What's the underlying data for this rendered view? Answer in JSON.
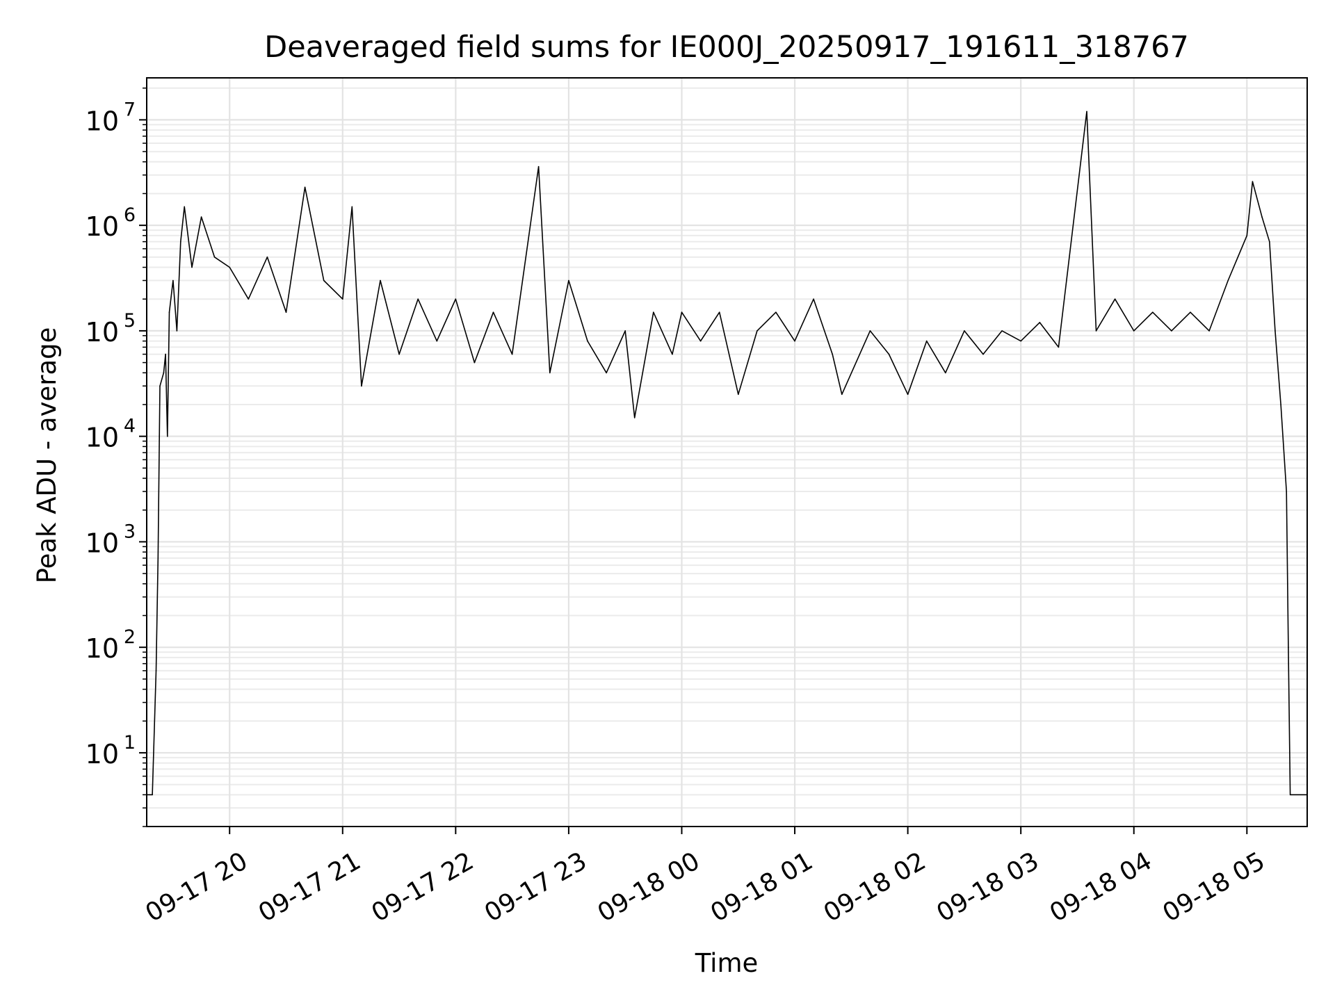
{
  "chart_data": {
    "type": "line",
    "title": "Deaveraged field sums for IE000J_20250917_191611_318767",
    "xlabel": "Time",
    "ylabel": "Peak ADU - average",
    "yscale": "log",
    "ylim": [
      2,
      25000000
    ],
    "xlim": [
      "2025-09-17 19:16",
      "2025-09-18 05:32"
    ],
    "grid": "both major and minor, light gray",
    "legend": "none",
    "line_color": "#000000",
    "x_ticks": [
      {
        "value": "2025-09-17 20:00",
        "label": "09-17 20"
      },
      {
        "value": "2025-09-17 21:00",
        "label": "09-17 21"
      },
      {
        "value": "2025-09-17 22:00",
        "label": "09-17 22"
      },
      {
        "value": "2025-09-17 23:00",
        "label": "09-17 23"
      },
      {
        "value": "2025-09-18 00:00",
        "label": "09-18 00"
      },
      {
        "value": "2025-09-18 01:00",
        "label": "09-18 01"
      },
      {
        "value": "2025-09-18 02:00",
        "label": "09-18 02"
      },
      {
        "value": "2025-09-18 03:00",
        "label": "09-18 03"
      },
      {
        "value": "2025-09-18 04:00",
        "label": "09-18 04"
      },
      {
        "value": "2025-09-18 05:00",
        "label": "09-18 05"
      }
    ],
    "y_ticks": [
      {
        "value": 10,
        "base": "10",
        "exp": "1"
      },
      {
        "value": 100,
        "base": "10",
        "exp": "2"
      },
      {
        "value": 1000,
        "base": "10",
        "exp": "3"
      },
      {
        "value": 10000,
        "base": "10",
        "exp": "4"
      },
      {
        "value": 100000,
        "base": "10",
        "exp": "5"
      },
      {
        "value": 1000000,
        "base": "10",
        "exp": "6"
      },
      {
        "value": 10000000,
        "base": "10",
        "exp": "7"
      }
    ],
    "series": [
      {
        "points": [
          [
            "2025-09-17 19:16",
            4
          ],
          [
            "2025-09-17 19:19",
            4
          ],
          [
            "2025-09-17 19:21",
            60
          ],
          [
            "2025-09-17 19:22",
            700
          ],
          [
            "2025-09-17 19:23",
            30000
          ],
          [
            "2025-09-17 19:25",
            40000
          ],
          [
            "2025-09-17 19:26",
            60000
          ],
          [
            "2025-09-17 19:27",
            10000
          ],
          [
            "2025-09-17 19:28",
            150000
          ],
          [
            "2025-09-17 19:30",
            300000
          ],
          [
            "2025-09-17 19:32",
            100000
          ],
          [
            "2025-09-17 19:34",
            700000
          ],
          [
            "2025-09-17 19:36",
            1500000
          ],
          [
            "2025-09-17 19:40",
            400000
          ],
          [
            "2025-09-17 19:45",
            1200000
          ],
          [
            "2025-09-17 19:52",
            500000
          ],
          [
            "2025-09-17 20:00",
            400000
          ],
          [
            "2025-09-17 20:10",
            200000
          ],
          [
            "2025-09-17 20:20",
            500000
          ],
          [
            "2025-09-17 20:30",
            150000
          ],
          [
            "2025-09-17 20:40",
            2300000
          ],
          [
            "2025-09-17 20:50",
            300000
          ],
          [
            "2025-09-17 21:00",
            200000
          ],
          [
            "2025-09-17 21:05",
            1500000
          ],
          [
            "2025-09-17 21:10",
            30000
          ],
          [
            "2025-09-17 21:20",
            300000
          ],
          [
            "2025-09-17 21:30",
            60000
          ],
          [
            "2025-09-17 21:40",
            200000
          ],
          [
            "2025-09-17 21:50",
            80000
          ],
          [
            "2025-09-17 22:00",
            200000
          ],
          [
            "2025-09-17 22:10",
            50000
          ],
          [
            "2025-09-17 22:20",
            150000
          ],
          [
            "2025-09-17 22:30",
            60000
          ],
          [
            "2025-09-17 22:44",
            3600000
          ],
          [
            "2025-09-17 22:50",
            40000
          ],
          [
            "2025-09-17 23:00",
            300000
          ],
          [
            "2025-09-17 23:10",
            80000
          ],
          [
            "2025-09-17 23:20",
            40000
          ],
          [
            "2025-09-17 23:30",
            100000
          ],
          [
            "2025-09-17 23:35",
            15000
          ],
          [
            "2025-09-17 23:45",
            150000
          ],
          [
            "2025-09-17 23:55",
            60000
          ],
          [
            "2025-09-18 00:00",
            150000
          ],
          [
            "2025-09-18 00:10",
            80000
          ],
          [
            "2025-09-18 00:20",
            150000
          ],
          [
            "2025-09-18 00:30",
            25000
          ],
          [
            "2025-09-18 00:40",
            100000
          ],
          [
            "2025-09-18 00:50",
            150000
          ],
          [
            "2025-09-18 01:00",
            80000
          ],
          [
            "2025-09-18 01:10",
            200000
          ],
          [
            "2025-09-18 01:20",
            60000
          ],
          [
            "2025-09-18 01:25",
            25000
          ],
          [
            "2025-09-18 01:40",
            100000
          ],
          [
            "2025-09-18 01:50",
            60000
          ],
          [
            "2025-09-18 02:00",
            25000
          ],
          [
            "2025-09-18 02:10",
            80000
          ],
          [
            "2025-09-18 02:20",
            40000
          ],
          [
            "2025-09-18 02:30",
            100000
          ],
          [
            "2025-09-18 02:40",
            60000
          ],
          [
            "2025-09-18 02:50",
            100000
          ],
          [
            "2025-09-18 03:00",
            80000
          ],
          [
            "2025-09-18 03:10",
            120000
          ],
          [
            "2025-09-18 03:20",
            70000
          ],
          [
            "2025-09-18 03:35",
            12000000
          ],
          [
            "2025-09-18 03:40",
            100000
          ],
          [
            "2025-09-18 03:50",
            200000
          ],
          [
            "2025-09-18 04:00",
            100000
          ],
          [
            "2025-09-18 04:10",
            150000
          ],
          [
            "2025-09-18 04:20",
            100000
          ],
          [
            "2025-09-18 04:30",
            150000
          ],
          [
            "2025-09-18 04:40",
            100000
          ],
          [
            "2025-09-18 04:50",
            300000
          ],
          [
            "2025-09-18 05:00",
            800000
          ],
          [
            "2025-09-18 05:03",
            2600000
          ],
          [
            "2025-09-18 05:08",
            1200000
          ],
          [
            "2025-09-18 05:12",
            700000
          ],
          [
            "2025-09-18 05:15",
            100000
          ],
          [
            "2025-09-18 05:18",
            20000
          ],
          [
            "2025-09-18 05:21",
            3000
          ],
          [
            "2025-09-18 05:22",
            100
          ],
          [
            "2025-09-18 05:23",
            4
          ],
          [
            "2025-09-18 05:32",
            4
          ]
        ]
      }
    ]
  }
}
